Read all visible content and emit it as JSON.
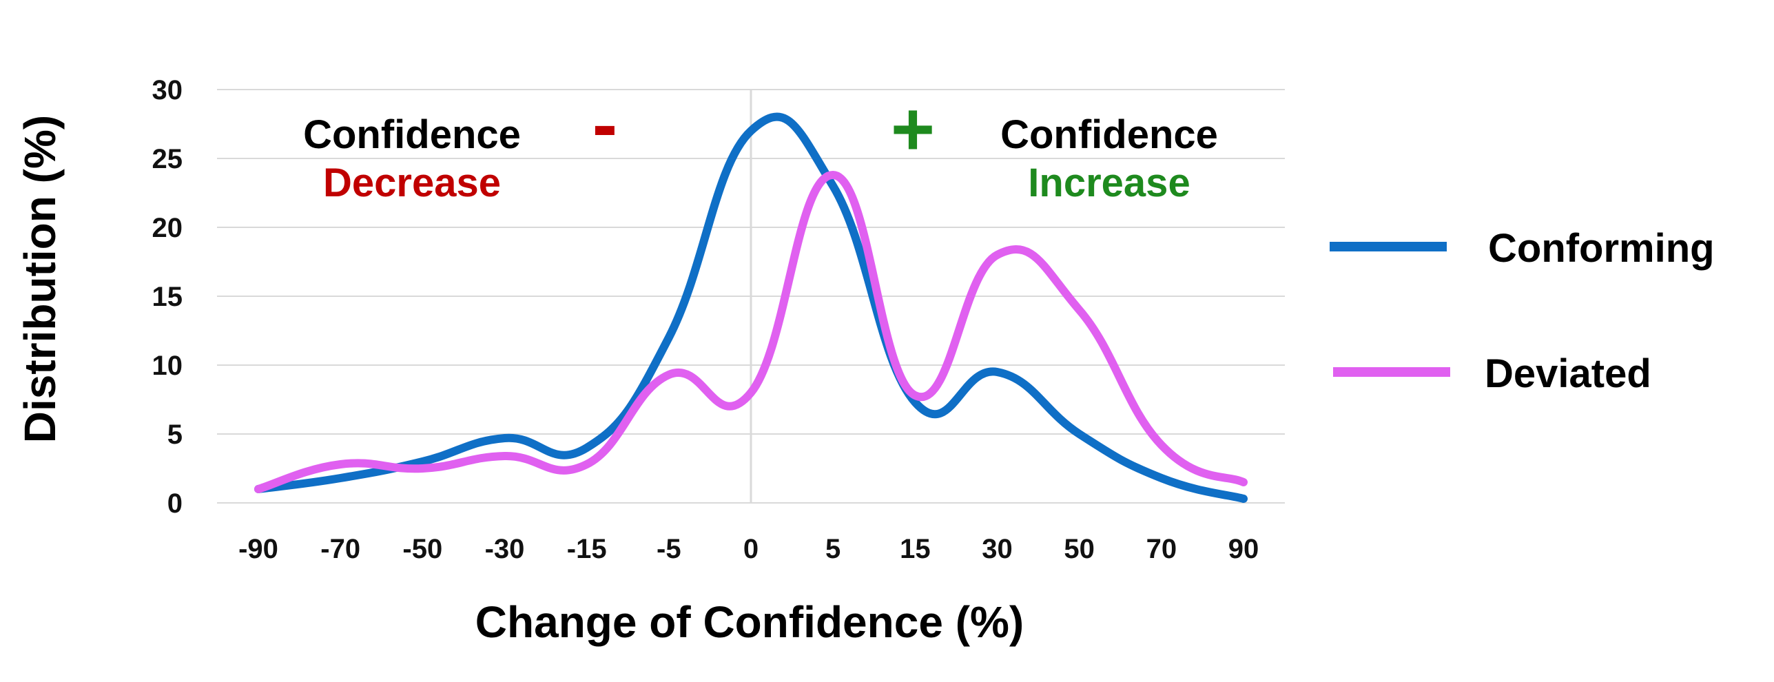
{
  "chart_data": {
    "type": "line",
    "xlabel": "Change of Confidence (%)",
    "ylabel": "Distribution (%)",
    "categories": [
      "-90",
      "-70",
      "-50",
      "-30",
      "-15",
      "-5",
      "0",
      "5",
      "15",
      "30",
      "50",
      "70",
      "90"
    ],
    "ylim": [
      0,
      30
    ],
    "yticks": [
      0,
      5,
      10,
      15,
      20,
      25,
      30
    ],
    "grid": true,
    "legend_position": "right",
    "series": [
      {
        "name": "Conforming",
        "color": "#0f6fc6",
        "values": [
          1.0,
          1.8,
          3.0,
          4.7,
          4.0,
          12.0,
          27.0,
          23.0,
          7.3,
          9.5,
          5.0,
          1.8,
          0.3
        ]
      },
      {
        "name": "Deviated",
        "color": "#e060f0",
        "values": [
          1.0,
          2.8,
          2.5,
          3.4,
          2.8,
          9.3,
          8.0,
          23.8,
          7.8,
          18.0,
          14.0,
          4.2,
          1.5
        ]
      }
    ],
    "annotations": {
      "left_label": "Confidence",
      "left_sublabel": "Decrease",
      "left_sign": "-",
      "left_color": "#c00000",
      "right_label": "Confidence",
      "right_sublabel": "Increase",
      "right_sign": "+",
      "right_color": "#1e8a1e"
    }
  }
}
